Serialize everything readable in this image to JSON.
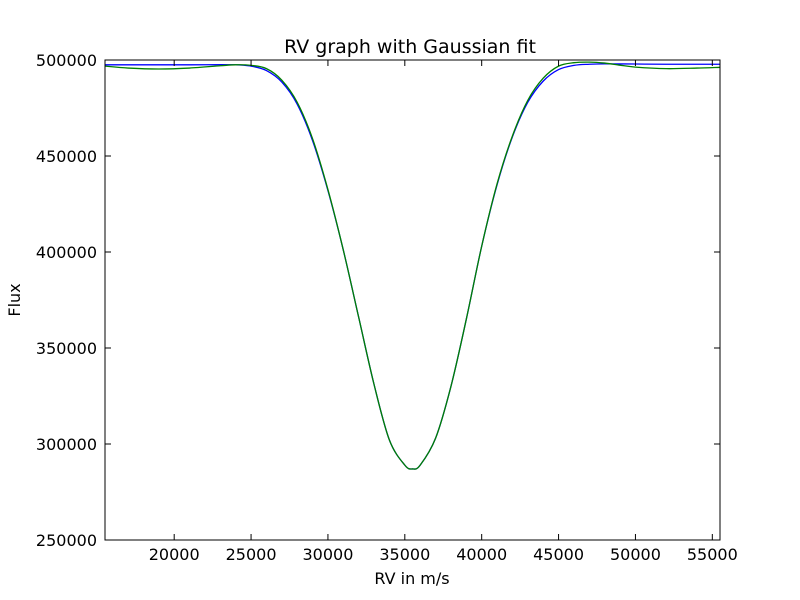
{
  "chart_data": {
    "type": "line",
    "title": "RV graph with Gaussian fit",
    "xlabel": "RV in m/s",
    "ylabel": "Flux",
    "xlim": [
      15500,
      55500
    ],
    "ylim": [
      250000,
      500000
    ],
    "xticks": [
      20000,
      25000,
      30000,
      35000,
      40000,
      45000,
      50000,
      55000
    ],
    "yticks": [
      250000,
      300000,
      350000,
      400000,
      450000,
      500000
    ],
    "grid": false,
    "legend": "none",
    "series": [
      {
        "color": "#0000ff",
        "x": [
          15500,
          18000,
          21000,
          24000,
          25000,
          26000,
          27000,
          28000,
          29000,
          30000,
          31000,
          32000,
          33000,
          34000,
          35000,
          35500,
          36000,
          37000,
          38000,
          39000,
          40000,
          41000,
          42000,
          43000,
          44000,
          45000,
          46000,
          47000,
          48000,
          50000,
          52000,
          55500
        ],
        "y": [
          497500,
          497500,
          497500,
          497500,
          496800,
          494500,
          488500,
          477000,
          458000,
          432000,
          401000,
          366000,
          331000,
          302000,
          289000,
          287000,
          289000,
          303000,
          330000,
          365000,
          403000,
          435000,
          460000,
          478000,
          489000,
          495000,
          497200,
          497800,
          498000,
          497900,
          497800,
          497800
        ]
      },
      {
        "color": "#008000",
        "x": [
          15500,
          17000,
          19000,
          21000,
          23000,
          24000,
          25000,
          26000,
          27000,
          28000,
          29000,
          30000,
          31000,
          32000,
          33000,
          34000,
          35000,
          35500,
          36000,
          37000,
          38000,
          39000,
          40000,
          41000,
          42000,
          43000,
          44000,
          45000,
          46000,
          47000,
          48000,
          49000,
          50000,
          52000,
          54000,
          55500
        ],
        "y": [
          496800,
          495800,
          495300,
          495800,
          497000,
          497500,
          497200,
          495500,
          489500,
          478000,
          459000,
          432500,
          401000,
          366000,
          331000,
          302000,
          289000,
          287000,
          289000,
          303000,
          330000,
          365000,
          403000,
          435500,
          460500,
          479000,
          490500,
          496800,
          498600,
          498900,
          498400,
          497300,
          496300,
          495500,
          495800,
          496200
        ]
      }
    ]
  }
}
